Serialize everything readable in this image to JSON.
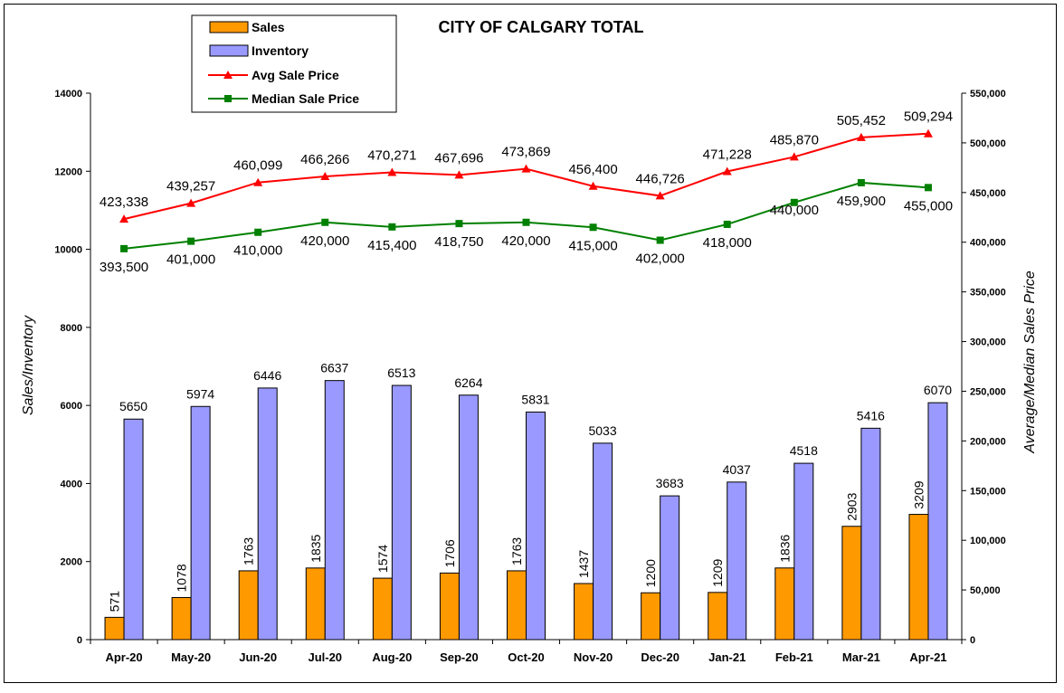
{
  "chart_data": {
    "type": "bar",
    "title": "CITY OF CALGARY TOTAL",
    "categories": [
      "Apr-20",
      "May-20",
      "Jun-20",
      "Jul-20",
      "Aug-20",
      "Sep-20",
      "Oct-20",
      "Nov-20",
      "Dec-20",
      "Jan-21",
      "Feb-21",
      "Mar-21",
      "Apr-21"
    ],
    "ylabel_left": "Sales/Inventory",
    "ylabel_right": "Average/Median Sales Price",
    "ylim_left": [
      0,
      14000
    ],
    "ylim_right": [
      0,
      550000
    ],
    "yticks_left": [
      "0",
      "2000",
      "4000",
      "6000",
      "8000",
      "10000",
      "12000",
      "14000"
    ],
    "yticks_right": [
      "0",
      "50,000",
      "100,000",
      "150,000",
      "200,000",
      "250,000",
      "300,000",
      "350,000",
      "400,000",
      "450,000",
      "500,000",
      "550,000"
    ],
    "grid": false,
    "legend_position": "top-left",
    "series": [
      {
        "name": "Sales",
        "kind": "bar",
        "axis": "left",
        "color": "#FF9900",
        "values": [
          571,
          1078,
          1763,
          1835,
          1574,
          1706,
          1763,
          1437,
          1200,
          1209,
          1836,
          2903,
          3209
        ],
        "labels": [
          "571",
          "1078",
          "1763",
          "1835",
          "1574",
          "1706",
          "1763",
          "1437",
          "1200",
          "1209",
          "1836",
          "2903",
          "3209"
        ]
      },
      {
        "name": "Inventory",
        "kind": "bar",
        "axis": "left",
        "color": "#9999FF",
        "values": [
          5650,
          5974,
          6446,
          6637,
          6513,
          6264,
          5831,
          5033,
          3683,
          4037,
          4518,
          5416,
          6070
        ],
        "labels": [
          "5650",
          "5974",
          "6446",
          "6637",
          "6513",
          "6264",
          "5831",
          "5033",
          "3683",
          "4037",
          "4518",
          "5416",
          "6070"
        ]
      },
      {
        "name": "Avg Sale Price",
        "kind": "line",
        "axis": "right",
        "color": "#FF0000",
        "marker": "triangle",
        "values": [
          423338,
          439257,
          460099,
          466266,
          470271,
          467696,
          473869,
          456400,
          446726,
          471228,
          485870,
          505452,
          509294
        ],
        "labels": [
          "423,338",
          "439,257",
          "460,099",
          "466,266",
          "470,271",
          "467,696",
          "473,869",
          "456,400",
          "446,726",
          "471,228",
          "485,870",
          "505,452",
          "509,294"
        ]
      },
      {
        "name": "Median Sale Price",
        "kind": "line",
        "axis": "right",
        "color": "#008000",
        "marker": "square",
        "values": [
          393500,
          401000,
          410000,
          420000,
          415400,
          418750,
          420000,
          415000,
          402000,
          418000,
          440000,
          459900,
          455000
        ],
        "labels": [
          "393,500",
          "401,000",
          "410,000",
          "420,000",
          "415,400",
          "418,750",
          "420,000",
          "415,000",
          "402,000",
          "418,000",
          "440,000",
          "459,900",
          "455,000"
        ]
      }
    ]
  }
}
